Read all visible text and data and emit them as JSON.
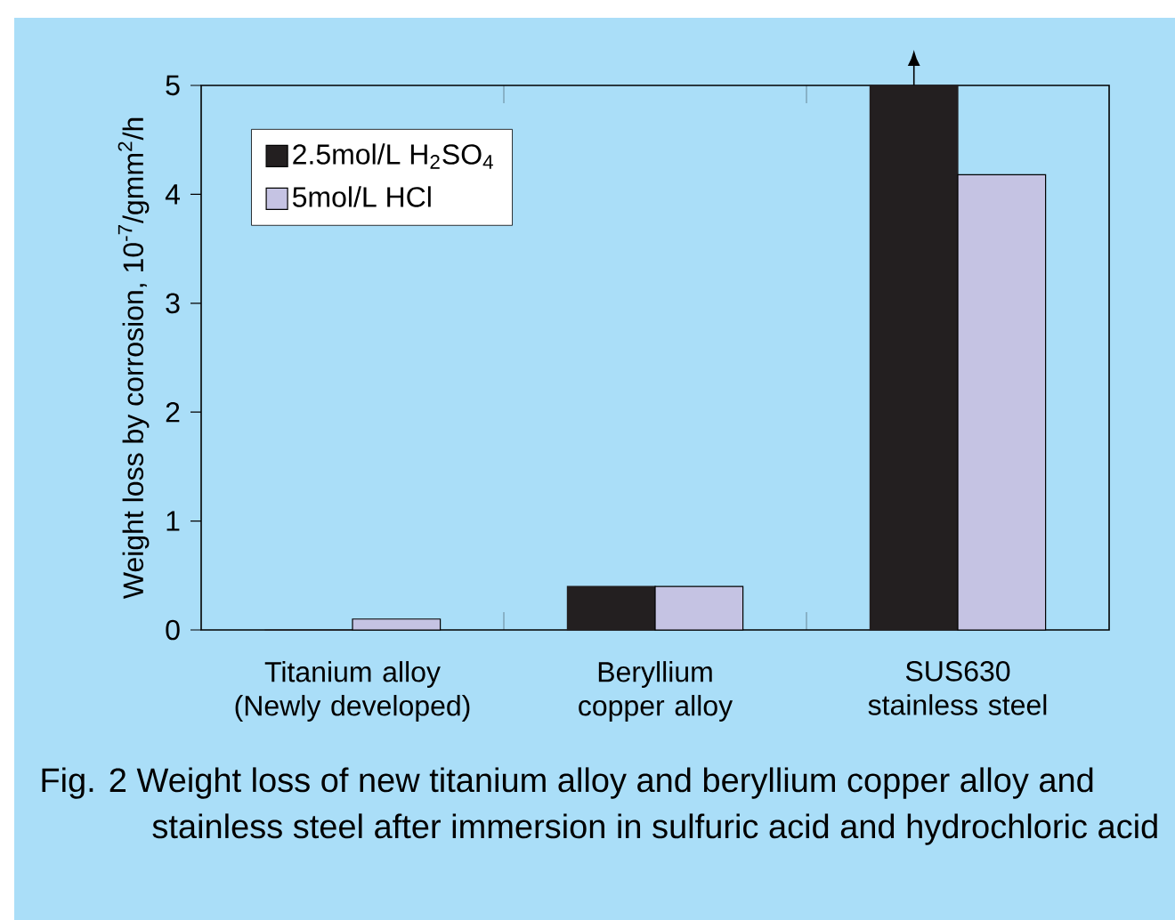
{
  "chart_data": {
    "type": "bar",
    "ylabel": "Weight loss by corrosion, 10$^{-7}$/gmm$^{2}$/h",
    "categories": [
      "Titanium alloy (Newly developed)",
      "Beryllium copper alloy",
      "SUS630 stainless steel"
    ],
    "series": [
      {
        "name": "2.5mol/L H$_{2}$SO$_{4}$",
        "color": "#231f20",
        "values": [
          0,
          0.4,
          5
        ]
      },
      {
        "name": "5mol/L HCl",
        "color": "#c5c3e3",
        "values": [
          0.1,
          0.4,
          4.18
        ]
      }
    ],
    "ylim": [
      0,
      5
    ],
    "yticks": [
      0,
      1,
      2,
      3,
      4,
      5
    ],
    "legend": "top left",
    "annotations": [
      "Fig. 2  Weight loss of new titanium alloy and beryllium copper alloy and stainless steel after immersion in sulfuric acid and hydrochloric acid"
    ]
  }
}
